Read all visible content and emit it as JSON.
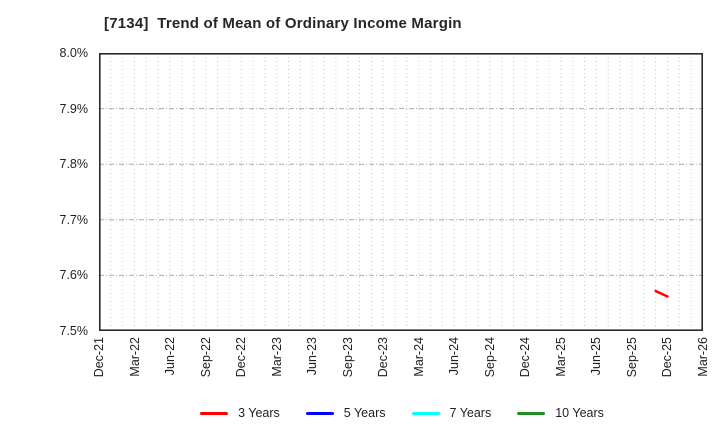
{
  "chart_data": {
    "type": "line",
    "title": "[7134]  Trend of Mean of Ordinary Income Margin",
    "xlabel": "",
    "ylabel": "",
    "x_tick_labels": [
      "Dec-21",
      "Mar-22",
      "Jun-22",
      "Sep-22",
      "Dec-22",
      "Mar-23",
      "Jun-23",
      "Sep-23",
      "Dec-23",
      "Mar-24",
      "Jun-24",
      "Sep-24",
      "Dec-24",
      "Mar-25",
      "Jun-25",
      "Sep-25",
      "Dec-25",
      "Mar-26"
    ],
    "x_tick_interval_months": 3,
    "x_total_months": 51,
    "y_ticks": [
      7.5,
      7.6,
      7.7,
      7.8,
      7.9,
      8.0
    ],
    "y_tick_labels": [
      "7.5%",
      "7.6%",
      "7.7%",
      "7.8%",
      "7.9%",
      "8.0%"
    ],
    "ylim": [
      7.5,
      8.0
    ],
    "grid": "both",
    "grid_style": {
      "vertical": "dotted-monthly",
      "horizontal": "dash-dot-per-0.1pct"
    },
    "legend_position": "bottom",
    "series": [
      {
        "name": "3 Years",
        "color": "#ff0000",
        "points": [
          {
            "month_index": 47,
            "label": "Nov-25",
            "value": 7.572
          },
          {
            "month_index": 48,
            "label": "Dec-25",
            "value": 7.562
          }
        ]
      },
      {
        "name": "5 Years",
        "color": "#0000ff",
        "points": []
      },
      {
        "name": "7 Years",
        "color": "#00ffff",
        "points": []
      },
      {
        "name": "10 Years",
        "color": "#228b22",
        "points": []
      }
    ]
  }
}
